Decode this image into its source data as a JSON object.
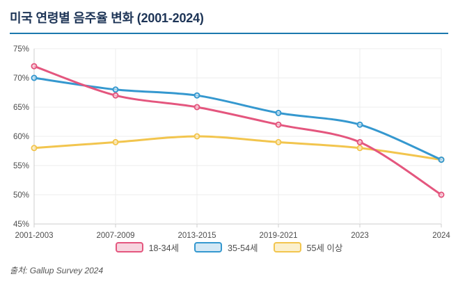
{
  "header": {
    "title": "미국 연령별 음주율 변화 (2001-2024)",
    "underline_color": "#1b78ae",
    "title_color": "#1d3456"
  },
  "source": {
    "text": "출처: Gallup Survey 2024"
  },
  "chart_data": {
    "type": "line",
    "title": "미국 연령별 음주율 변화 (2001-2024)",
    "categories": [
      "2001-2003",
      "2007-2009",
      "2013-2015",
      "2019-2021",
      "2023",
      "2024"
    ],
    "series": [
      {
        "name": "18-34세",
        "color": "#e4567e",
        "swatch_fill": "#f7d5df",
        "values": [
          72,
          67,
          65,
          62,
          59,
          50
        ]
      },
      {
        "name": "35-54세",
        "color": "#3598cf",
        "swatch_fill": "#d3e8f5",
        "values": [
          70,
          68,
          67,
          64,
          62,
          56
        ]
      },
      {
        "name": "55세 이상",
        "color": "#f2c54e",
        "swatch_fill": "#fbf0cd",
        "values": [
          58,
          59,
          60,
          59,
          58,
          56
        ]
      }
    ],
    "xlabel": "",
    "ylabel": "",
    "ylim": [
      45,
      75
    ],
    "ytick_step": 5,
    "ytick_suffix": "%",
    "grid": true,
    "legend_position": "bottom",
    "colors": {
      "gridline": "#ececec",
      "axis": "#cccccc",
      "tick_label": "#4d4d4d",
      "point_fill": "#ffffff"
    }
  }
}
